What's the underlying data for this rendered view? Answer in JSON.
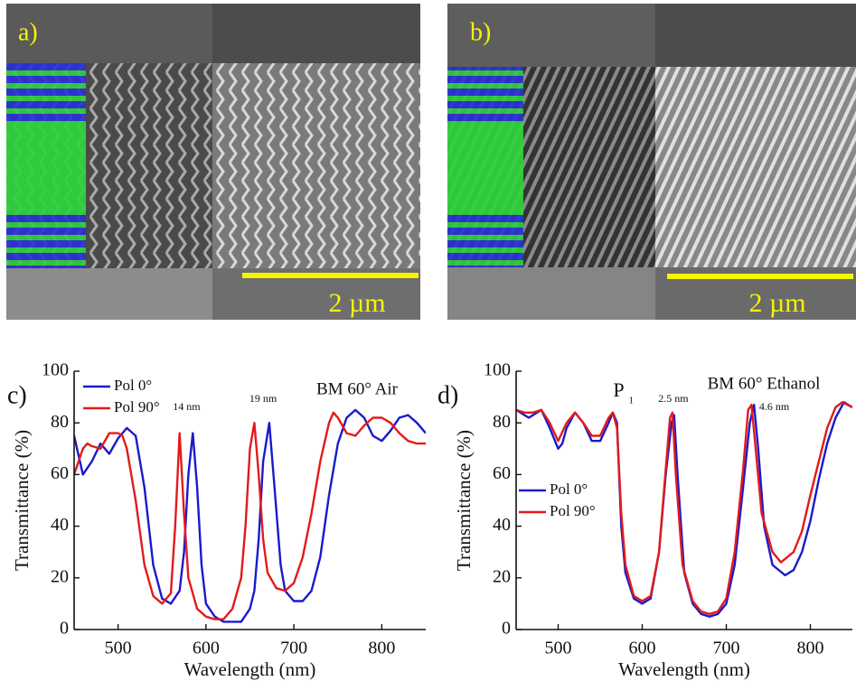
{
  "images": [
    {
      "label": "a)",
      "scale_bar": "2 µm"
    },
    {
      "label": "b)",
      "scale_bar": "2 µm"
    }
  ],
  "chart_data": [
    {
      "type": "line",
      "panel_label": "c)",
      "title": "BM 60° Air",
      "xlabel": "Wavelength (nm)",
      "ylabel": "Transmittance (%)",
      "xlim": [
        450,
        850
      ],
      "xticks": [
        500,
        600,
        700,
        800
      ],
      "ylim": [
        0,
        100
      ],
      "yticks": [
        0,
        20,
        40,
        60,
        80,
        100
      ],
      "legend": "upper left",
      "annotations": [
        "14 nm",
        "19 nm"
      ],
      "series": [
        {
          "name": "Pol 0°",
          "color": "#1a1acc",
          "x": [
            450,
            460,
            470,
            480,
            490,
            500,
            510,
            520,
            530,
            540,
            550,
            560,
            570,
            575,
            580,
            585,
            590,
            595,
            600,
            610,
            620,
            630,
            640,
            650,
            655,
            660,
            665,
            672,
            678,
            685,
            690,
            700,
            710,
            720,
            730,
            740,
            750,
            760,
            770,
            780,
            790,
            800,
            810,
            820,
            830,
            840,
            850
          ],
          "values": [
            75,
            60,
            65,
            72,
            68,
            74,
            78,
            75,
            55,
            25,
            12,
            10,
            15,
            30,
            60,
            76,
            55,
            25,
            10,
            5,
            3,
            3,
            3,
            8,
            15,
            35,
            65,
            80,
            55,
            25,
            15,
            11,
            11,
            15,
            28,
            52,
            72,
            82,
            85,
            82,
            75,
            73,
            77,
            82,
            83,
            80,
            76
          ]
        },
        {
          "name": "Pol 90°",
          "color": "#e31a1a",
          "x": [
            450,
            460,
            465,
            470,
            480,
            490,
            500,
            505,
            510,
            520,
            530,
            540,
            550,
            560,
            565,
            570,
            575,
            580,
            590,
            600,
            610,
            620,
            630,
            640,
            645,
            650,
            655,
            660,
            665,
            670,
            680,
            690,
            700,
            710,
            720,
            730,
            740,
            745,
            750,
            760,
            770,
            780,
            790,
            800,
            810,
            820,
            830,
            840,
            850
          ],
          "values": [
            60,
            70,
            72,
            71,
            70,
            76,
            76,
            75,
            70,
            50,
            25,
            13,
            10,
            14,
            40,
            76,
            45,
            20,
            8,
            5,
            4,
            4,
            8,
            20,
            40,
            70,
            80,
            60,
            35,
            22,
            16,
            15,
            18,
            28,
            45,
            65,
            80,
            84,
            82,
            76,
            75,
            79,
            82,
            82,
            80,
            76,
            73,
            72,
            72
          ]
        }
      ]
    },
    {
      "type": "line",
      "panel_label": "d)",
      "title": "BM 60° Ethanol",
      "xlabel": "Wavelength (nm)",
      "ylabel": "Transmittance (%)",
      "xlim": [
        450,
        850
      ],
      "xticks": [
        500,
        600,
        700,
        800
      ],
      "ylim": [
        0,
        100
      ],
      "yticks": [
        0,
        20,
        40,
        60,
        80,
        100
      ],
      "legend": "center left",
      "annotations": [
        "2.5 nm",
        "4.6 nm"
      ],
      "peak_label": {
        "text": "P",
        "subscript": "1"
      },
      "series": [
        {
          "name": "Pol 0°",
          "color": "#1a1acc",
          "x": [
            450,
            460,
            465,
            470,
            480,
            490,
            500,
            505,
            510,
            520,
            530,
            540,
            550,
            560,
            565,
            570,
            575,
            580,
            590,
            600,
            610,
            620,
            628,
            635,
            638,
            642,
            650,
            660,
            670,
            680,
            690,
            700,
            710,
            720,
            728,
            733,
            738,
            745,
            755,
            770,
            780,
            790,
            800,
            810,
            820,
            830,
            840,
            850
          ],
          "values": [
            85,
            83,
            82,
            83,
            85,
            78,
            70,
            72,
            78,
            84,
            80,
            73,
            73,
            80,
            84,
            80,
            40,
            22,
            12,
            10,
            12,
            30,
            60,
            80,
            83,
            60,
            22,
            10,
            6,
            5,
            6,
            10,
            25,
            55,
            80,
            87,
            70,
            40,
            25,
            21,
            23,
            30,
            42,
            58,
            72,
            82,
            88,
            86
          ]
        },
        {
          "name": "Pol 90°",
          "color": "#e31a1a",
          "x": [
            450,
            460,
            470,
            480,
            490,
            500,
            510,
            520,
            530,
            540,
            550,
            560,
            565,
            570,
            575,
            580,
            590,
            600,
            610,
            620,
            628,
            633,
            636,
            640,
            648,
            660,
            670,
            680,
            690,
            700,
            710,
            720,
            726,
            730,
            735,
            742,
            755,
            765,
            780,
            790,
            800,
            810,
            820,
            830,
            838,
            850
          ],
          "values": [
            85,
            84,
            84,
            85,
            80,
            73,
            80,
            84,
            80,
            75,
            75,
            82,
            84,
            78,
            45,
            25,
            13,
            11,
            13,
            30,
            62,
            82,
            84,
            60,
            25,
            11,
            7,
            6,
            7,
            12,
            30,
            62,
            85,
            87,
            70,
            45,
            30,
            26,
            30,
            38,
            52,
            65,
            78,
            86,
            88,
            86
          ]
        }
      ]
    }
  ]
}
